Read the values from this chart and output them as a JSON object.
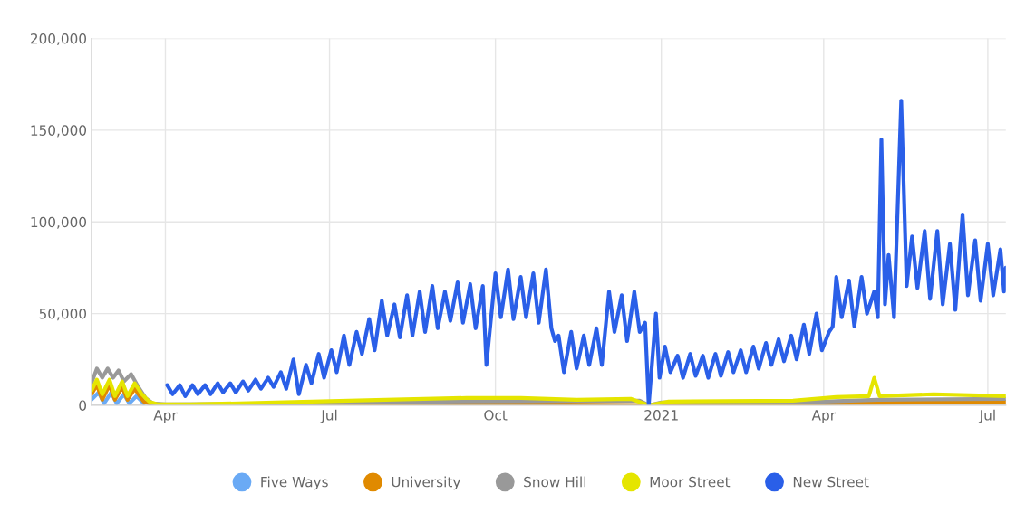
{
  "chart_data": {
    "type": "line",
    "xlim": [
      "2020-02-20",
      "2021-07-11"
    ],
    "xticks": [
      {
        "value": "2020-04-01",
        "label": "Apr"
      },
      {
        "value": "2020-07-01",
        "label": "Jul"
      },
      {
        "value": "2020-10-01",
        "label": "Oct"
      },
      {
        "value": "2021-01-01",
        "label": "2021"
      },
      {
        "value": "2021-04-01",
        "label": "Apr"
      },
      {
        "value": "2021-07-01",
        "label": "Jul"
      }
    ],
    "ylim": [
      0,
      200000
    ],
    "yticks": [
      {
        "value": 0,
        "label": "0"
      },
      {
        "value": 50000,
        "label": "50,000"
      },
      {
        "value": 100000,
        "label": "100,000"
      },
      {
        "value": 150000,
        "label": "150,000"
      },
      {
        "value": 200000,
        "label": "200,000"
      }
    ],
    "grid": true,
    "legend": "bottom",
    "marker": "none",
    "line_style": "solid",
    "series": [
      {
        "name": "Five Ways",
        "color": "#6aaaf5",
        "x": [
          "2020-02-20",
          "2020-02-24",
          "2020-02-27",
          "2020-03-02",
          "2020-03-05",
          "2020-03-09",
          "2020-03-12",
          "2020-03-16",
          "2020-03-20"
        ],
        "values": [
          3000,
          7000,
          1000,
          7000,
          1000,
          6000,
          1000,
          5000,
          1000
        ]
      },
      {
        "name": "University",
        "color": "#e08a00",
        "x": [
          "2020-02-20",
          "2020-02-23",
          "2020-02-26",
          "2020-03-01",
          "2020-03-04",
          "2020-03-08",
          "2020-03-11",
          "2020-03-15",
          "2020-03-20",
          "2020-03-25",
          "2020-09-01",
          "2020-12-25",
          "2021-04-01",
          "2021-07-11"
        ],
        "values": [
          6000,
          11000,
          3000,
          11000,
          3000,
          10000,
          3000,
          9000,
          2000,
          300,
          1000,
          0,
          1000,
          2000
        ]
      },
      {
        "name": "Snow Hill",
        "color": "#999999",
        "x": [
          "2020-02-20",
          "2020-02-23",
          "2020-02-26",
          "2020-02-29",
          "2020-03-03",
          "2020-03-06",
          "2020-03-09",
          "2020-03-13",
          "2020-03-17",
          "2020-03-21",
          "2020-03-25",
          "2020-04-01",
          "2020-06-01",
          "2020-09-01",
          "2020-12-20",
          "2020-12-25",
          "2021-01-01",
          "2021-04-01",
          "2021-05-01",
          "2021-07-11"
        ],
        "values": [
          12000,
          20000,
          15000,
          20000,
          15000,
          19000,
          13000,
          17000,
          10000,
          4000,
          1000,
          500,
          800,
          2000,
          2500,
          0,
          1500,
          2000,
          3000,
          3500
        ]
      },
      {
        "name": "Moor Street",
        "color": "#e5e500",
        "x": [
          "2020-02-20",
          "2020-02-23",
          "2020-02-26",
          "2020-03-01",
          "2020-03-04",
          "2020-03-08",
          "2020-03-11",
          "2020-03-15",
          "2020-03-19",
          "2020-03-23",
          "2020-03-28",
          "2020-04-15",
          "2020-06-01",
          "2020-08-01",
          "2020-09-15",
          "2020-10-15",
          "2020-11-15",
          "2020-12-15",
          "2020-12-25",
          "2021-01-05",
          "2021-03-15",
          "2021-04-08",
          "2021-04-26",
          "2021-04-29",
          "2021-05-02",
          "2021-06-01",
          "2021-07-11"
        ],
        "values": [
          8000,
          14000,
          6000,
          14000,
          5000,
          13000,
          5000,
          12000,
          6000,
          2000,
          500,
          500,
          1500,
          3000,
          4000,
          4000,
          3000,
          3500,
          0,
          2000,
          2500,
          4500,
          5000,
          15000,
          5000,
          6000,
          5000
        ]
      },
      {
        "name": "New Street",
        "color": "#2a5fe8",
        "x": [
          "2020-04-02",
          "2020-04-05",
          "2020-04-09",
          "2020-04-12",
          "2020-04-16",
          "2020-04-19",
          "2020-04-23",
          "2020-04-26",
          "2020-04-30",
          "2020-05-03",
          "2020-05-07",
          "2020-05-10",
          "2020-05-14",
          "2020-05-17",
          "2020-05-21",
          "2020-05-24",
          "2020-05-28",
          "2020-05-31",
          "2020-06-04",
          "2020-06-07",
          "2020-06-11",
          "2020-06-14",
          "2020-06-18",
          "2020-06-21",
          "2020-06-25",
          "2020-06-28",
          "2020-07-02",
          "2020-07-05",
          "2020-07-09",
          "2020-07-12",
          "2020-07-16",
          "2020-07-19",
          "2020-07-23",
          "2020-07-26",
          "2020-07-30",
          "2020-08-02",
          "2020-08-06",
          "2020-08-09",
          "2020-08-13",
          "2020-08-16",
          "2020-08-20",
          "2020-08-23",
          "2020-08-27",
          "2020-08-30",
          "2020-09-03",
          "2020-09-06",
          "2020-09-10",
          "2020-09-13",
          "2020-09-17",
          "2020-09-20",
          "2020-09-24",
          "2020-09-26",
          "2020-10-01",
          "2020-10-04",
          "2020-10-08",
          "2020-10-11",
          "2020-10-15",
          "2020-10-18",
          "2020-10-22",
          "2020-10-25",
          "2020-10-29",
          "2020-11-01",
          "2020-11-03",
          "2020-11-05",
          "2020-11-08",
          "2020-11-12",
          "2020-11-15",
          "2020-11-19",
          "2020-11-22",
          "2020-11-26",
          "2020-11-29",
          "2020-12-03",
          "2020-12-06",
          "2020-12-10",
          "2020-12-13",
          "2020-12-17",
          "2020-12-20",
          "2020-12-23",
          "2020-12-25",
          "2020-12-29",
          "2020-12-31",
          "2021-01-03",
          "2021-01-06",
          "2021-01-10",
          "2021-01-13",
          "2021-01-17",
          "2021-01-20",
          "2021-01-24",
          "2021-01-27",
          "2021-01-31",
          "2021-02-03",
          "2021-02-07",
          "2021-02-10",
          "2021-02-14",
          "2021-02-17",
          "2021-02-21",
          "2021-02-24",
          "2021-02-28",
          "2021-03-03",
          "2021-03-07",
          "2021-03-10",
          "2021-03-14",
          "2021-03-17",
          "2021-03-21",
          "2021-03-24",
          "2021-03-28",
          "2021-03-31",
          "2021-04-04",
          "2021-04-06",
          "2021-04-08",
          "2021-04-11",
          "2021-04-15",
          "2021-04-18",
          "2021-04-22",
          "2021-04-25",
          "2021-04-29",
          "2021-05-01",
          "2021-05-03",
          "2021-05-05",
          "2021-05-07",
          "2021-05-10",
          "2021-05-14",
          "2021-05-17",
          "2021-05-20",
          "2021-05-23",
          "2021-05-27",
          "2021-05-30",
          "2021-06-03",
          "2021-06-06",
          "2021-06-10",
          "2021-06-13",
          "2021-06-17",
          "2021-06-20",
          "2021-06-24",
          "2021-06-27",
          "2021-07-01",
          "2021-07-04",
          "2021-07-08",
          "2021-07-10",
          "2021-07-11"
        ],
        "values": [
          11000,
          6000,
          11000,
          5000,
          11000,
          6000,
          11000,
          6000,
          12000,
          7000,
          12000,
          7000,
          13000,
          8000,
          14000,
          9000,
          15000,
          10000,
          18000,
          9000,
          25000,
          6000,
          22000,
          12000,
          28000,
          15000,
          30000,
          18000,
          38000,
          22000,
          40000,
          28000,
          47000,
          30000,
          57000,
          38000,
          55000,
          37000,
          60000,
          38000,
          62000,
          40000,
          65000,
          42000,
          62000,
          46000,
          67000,
          45000,
          66000,
          42000,
          65000,
          22000,
          72000,
          48000,
          74000,
          47000,
          70000,
          48000,
          72000,
          45000,
          74000,
          42000,
          35000,
          38000,
          18000,
          40000,
          20000,
          38000,
          22000,
          42000,
          22000,
          62000,
          40000,
          60000,
          35000,
          62000,
          40000,
          45000,
          0,
          50000,
          15000,
          32000,
          18000,
          27000,
          15000,
          28000,
          16000,
          27000,
          15000,
          28000,
          16000,
          29000,
          18000,
          30000,
          18000,
          32000,
          20000,
          34000,
          22000,
          36000,
          24000,
          38000,
          25000,
          44000,
          28000,
          50000,
          30000,
          40000,
          43000,
          70000,
          48000,
          68000,
          43000,
          70000,
          50000,
          62000,
          48000,
          145000,
          55000,
          82000,
          48000,
          166000,
          65000,
          92000,
          64000,
          95000,
          58000,
          95000,
          55000,
          88000,
          52000,
          104000,
          60000,
          90000,
          57000,
          88000,
          60000,
          85000,
          62000,
          75000
        ]
      }
    ]
  }
}
